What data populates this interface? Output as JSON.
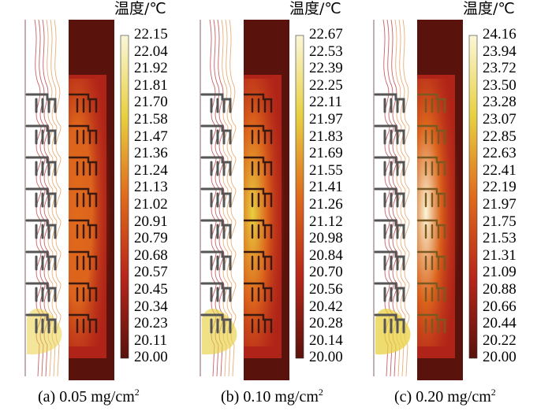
{
  "panels": [
    {
      "caption_prefix": "(a)",
      "caption_value": "0.05 mg/cm",
      "caption_sup": "2",
      "unit_label": "温度/℃",
      "ticks": [
        "22.15",
        "22.04",
        "21.92",
        "21.81",
        "21.70",
        "21.58",
        "21.47",
        "21.36",
        "21.24",
        "21.13",
        "21.02",
        "20.91",
        "20.79",
        "20.68",
        "20.57",
        "20.45",
        "20.34",
        "20.23",
        "20.11",
        "20.00"
      ],
      "intensity": 0.45
    },
    {
      "caption_prefix": "(b)",
      "caption_value": "0.10 mg/cm",
      "caption_sup": "2",
      "unit_label": "温度/℃",
      "ticks": [
        "22.67",
        "22.53",
        "22.39",
        "22.25",
        "22.11",
        "21.97",
        "21.83",
        "21.69",
        "21.55",
        "21.41",
        "21.26",
        "21.12",
        "20.98",
        "20.84",
        "20.70",
        "20.56",
        "20.42",
        "20.28",
        "20.14",
        "20.00"
      ],
      "intensity": 0.7
    },
    {
      "caption_prefix": "(c)",
      "caption_value": "0.20 mg/cm",
      "caption_sup": "2",
      "unit_label": "温度/℃",
      "ticks": [
        "24.16",
        "23.94",
        "23.72",
        "23.50",
        "23.28",
        "23.07",
        "22.85",
        "22.63",
        "22.41",
        "22.19",
        "21.97",
        "21.75",
        "21.53",
        "21.31",
        "21.09",
        "20.88",
        "20.66",
        "20.44",
        "20.22",
        "20.00"
      ],
      "intensity": 1.0
    }
  ],
  "colors": {
    "dark": "#5a120c",
    "red": "#b8261a",
    "orange": "#e06a1c",
    "yellow": "#e8d040",
    "pale": "#fbf7d8",
    "contour": "#c0444a",
    "fin": "#555555"
  }
}
